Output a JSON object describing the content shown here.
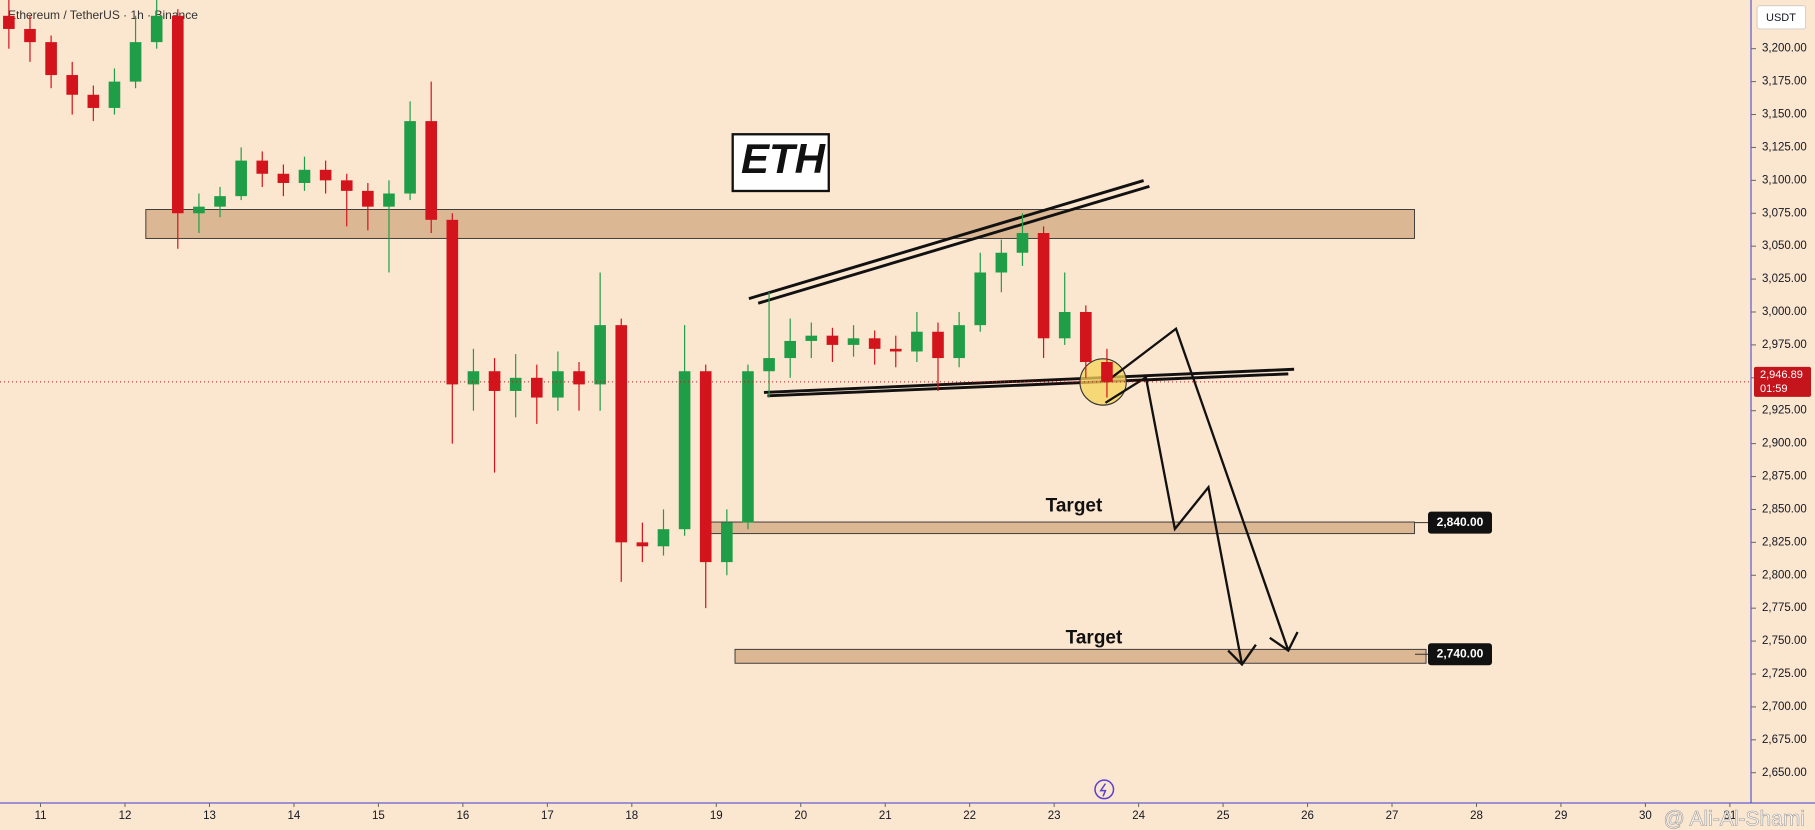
{
  "chart_data": {
    "type": "candlestick",
    "title": "Ethereum / TetherUS · 1h · Binance",
    "currency": "USDT",
    "label": "ETH",
    "watermark": "@ Ali-Al-Shami",
    "x": [
      10.625,
      10.875,
      11.125,
      11.375,
      11.625,
      11.875,
      12.125,
      12.375,
      12.625,
      12.875,
      13.125,
      13.375,
      13.625,
      13.875,
      14.125,
      14.375,
      14.625,
      14.875,
      15.125,
      15.375,
      15.625,
      15.875,
      16.125,
      16.375,
      16.625,
      16.875,
      17.125,
      17.375,
      17.625,
      17.875,
      18.125,
      18.375,
      18.625,
      18.875,
      19.125,
      19.375,
      19.625,
      19.875,
      20.125,
      20.375,
      20.625,
      20.875,
      21.125,
      21.375,
      21.625,
      21.875,
      22.125,
      22.375,
      22.625,
      22.875,
      23.125,
      23.375,
      23.625
    ],
    "open": [
      3225,
      3215,
      3205,
      3180,
      3165,
      3155,
      3175,
      3205,
      3225,
      3075,
      3080,
      3088,
      3115,
      3105,
      3098,
      3108,
      3100,
      3092,
      3080,
      3090,
      3145,
      3070,
      2945,
      2955,
      2940,
      2950,
      2935,
      2955,
      2945,
      2990,
      2825,
      2822,
      2835,
      2955,
      2810,
      2840,
      2955,
      2965,
      2978,
      2982,
      2975,
      2980,
      2972,
      2970,
      2985,
      2965,
      2990,
      3030,
      3045,
      3060,
      2980,
      3000,
      2962
    ],
    "high": [
      3237,
      3225,
      3210,
      3190,
      3172,
      3185,
      3225,
      3237,
      3230,
      3090,
      3095,
      3125,
      3122,
      3112,
      3118,
      3115,
      3105,
      3098,
      3100,
      3160,
      3175,
      3075,
      2972,
      2965,
      2968,
      2960,
      2970,
      2962,
      3030,
      2995,
      2840,
      2850,
      2990,
      2960,
      2850,
      2960,
      3015,
      2995,
      2992,
      2988,
      2990,
      2986,
      2982,
      3000,
      2992,
      3000,
      3045,
      3055,
      3075,
      3065,
      3030,
      3005,
      2972
    ],
    "low": [
      3200,
      3190,
      3170,
      3150,
      3145,
      3150,
      3170,
      3200,
      3048,
      3060,
      3072,
      3085,
      3095,
      3088,
      3092,
      3090,
      3065,
      3062,
      3030,
      3085,
      3060,
      2900,
      2925,
      2878,
      2920,
      2915,
      2925,
      2925,
      2925,
      2795,
      2810,
      2815,
      2830,
      2775,
      2800,
      2835,
      2935,
      2950,
      2965,
      2962,
      2966,
      2960,
      2958,
      2962,
      2940,
      2958,
      2985,
      3015,
      3035,
      2965,
      2975,
      2950,
      2935
    ],
    "close": [
      3215,
      3205,
      3180,
      3165,
      3155,
      3175,
      3205,
      3225,
      3075,
      3080,
      3088,
      3115,
      3105,
      3098,
      3108,
      3100,
      3092,
      3080,
      3090,
      3145,
      3070,
      2945,
      2955,
      2940,
      2950,
      2935,
      2955,
      2945,
      2990,
      2825,
      2822,
      2835,
      2955,
      2810,
      2840,
      2955,
      2965,
      2978,
      2982,
      2975,
      2980,
      2972,
      2970,
      2985,
      2965,
      2990,
      3030,
      3045,
      3060,
      2980,
      3000,
      2962,
      2946.89
    ],
    "up_color": "#1f9e47",
    "down_color": "#d3141c",
    "xlim": [
      10.52,
      31.25
    ],
    "xticks": [
      11,
      12,
      13,
      14,
      15,
      16,
      17,
      18,
      19,
      20,
      21,
      22,
      23,
      24,
      25,
      26,
      27,
      28,
      29,
      30,
      31
    ],
    "ylim": [
      2627,
      3237
    ],
    "yticks": [
      {
        "value": 2650,
        "label": "2,650.00"
      },
      {
        "value": 2675,
        "label": "2,675.00"
      },
      {
        "value": 2700,
        "label": "2,700.00"
      },
      {
        "value": 2725,
        "label": "2,725.00"
      },
      {
        "value": 2750,
        "label": "2,750.00"
      },
      {
        "value": 2775,
        "label": "2,775.00"
      },
      {
        "value": 2800,
        "label": "2,800.00"
      },
      {
        "value": 2825,
        "label": "2,825.00"
      },
      {
        "value": 2850,
        "label": "2,850.00"
      },
      {
        "value": 2875,
        "label": "2,875.00"
      },
      {
        "value": 2900,
        "label": "2,900.00"
      },
      {
        "value": 2925,
        "label": "2,925.00"
      },
      {
        "value": 2950,
        "label": "2,950.00"
      },
      {
        "value": 2975,
        "label": "2,975.00"
      },
      {
        "value": 3000,
        "label": "3,000.00"
      },
      {
        "value": 3025,
        "label": "3,025.00"
      },
      {
        "value": 3050,
        "label": "3,050.00"
      },
      {
        "value": 3075,
        "label": "3,075.00"
      },
      {
        "value": 3100,
        "label": "3,100.00"
      },
      {
        "value": 3125,
        "label": "3,125.00"
      },
      {
        "value": 3150,
        "label": "3,150.00"
      },
      {
        "value": 3175,
        "label": "3,175.00"
      },
      {
        "value": 3200,
        "label": "3,200.00"
      }
    ],
    "last_price": {
      "value": 2946.89,
      "label": "2,946.89"
    },
    "countdown": "01:59",
    "levels": [
      {
        "text": "Target",
        "value": 2840,
        "label": "2,840.00"
      },
      {
        "text": "Target",
        "value": 2740,
        "label": "2,740.00"
      }
    ]
  }
}
